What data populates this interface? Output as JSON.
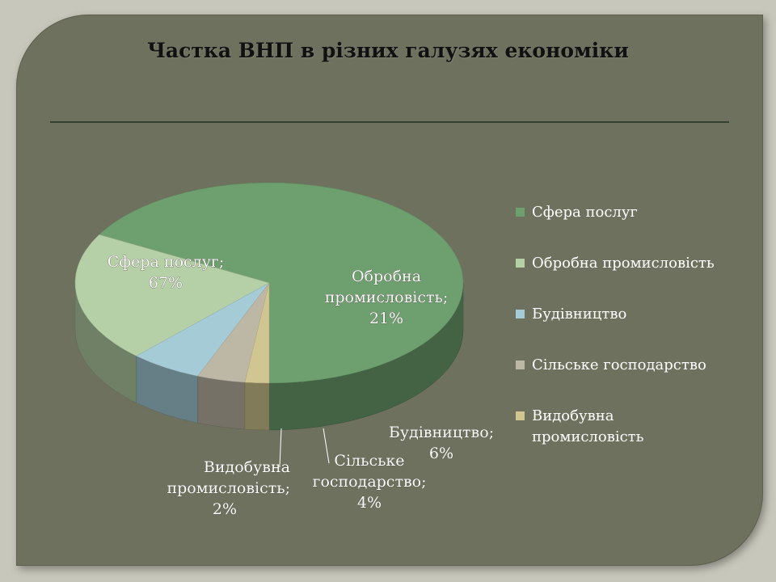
{
  "chart_data": {
    "type": "pie",
    "title": "Частка ВНП в різних галузях економіки",
    "categories": [
      "Сфера послуг",
      "Обробна промисловість",
      "Будівництво",
      "Сільське господарство",
      "Видобувна промисловість"
    ],
    "values": [
      67,
      21,
      6,
      4,
      2
    ],
    "data_labels": [
      [
        "Сфера послуг;",
        "67%"
      ],
      [
        "Обробна",
        "промисловість;",
        "21%"
      ],
      [
        "Будівництво;",
        "6%"
      ],
      [
        "Сільське",
        "господарство;",
        "4%"
      ],
      [
        "Видобувна",
        "промисловість;",
        "2%"
      ]
    ],
    "legend": {
      "position": "right",
      "entries": [
        [
          "Сфера послуг"
        ],
        [
          "Обробна промисловість"
        ],
        [
          "Будівництво"
        ],
        [
          "Сільське господарство"
        ],
        [
          "Видобувна",
          "промисловість"
        ]
      ]
    },
    "colors": [
      "#6e9f6f",
      "#b5cfa6",
      "#a4cbd6",
      "#bdb7a6",
      "#d1c691"
    ],
    "style": "3d"
  }
}
